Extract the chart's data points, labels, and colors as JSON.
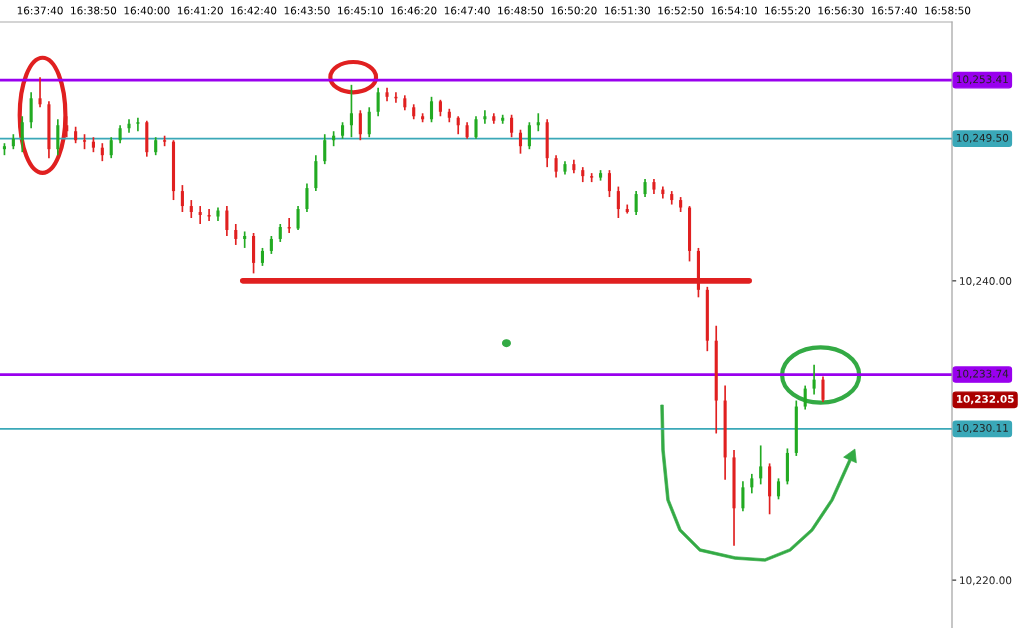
{
  "chart_data": {
    "type": "candlestick",
    "categories": [
      null,
      null,
      null,
      null,
      "16:37:40",
      null,
      null,
      null,
      null,
      null,
      "16:38:50",
      null,
      null,
      null,
      null,
      null,
      "16:40:00",
      null,
      null,
      null,
      null,
      null,
      "16:41:20",
      null,
      null,
      null,
      null,
      null,
      "16:42:40",
      null,
      null,
      null,
      null,
      null,
      "16:43:50",
      null,
      null,
      null,
      null,
      null,
      "16:45:10",
      null,
      null,
      null,
      null,
      null,
      "16:46:20",
      null,
      null,
      null,
      null,
      null,
      "16:47:40",
      null,
      null,
      null,
      null,
      null,
      "16:48:50",
      null,
      null,
      null,
      null,
      null,
      "16:50:20",
      null,
      null,
      null,
      null,
      null,
      "16:51:30",
      null,
      null,
      null,
      null,
      null,
      "16:52:50",
      null,
      null,
      null,
      null,
      null,
      "16:54:10",
      null,
      null,
      null,
      null,
      null,
      "16:55:20",
      null,
      null,
      null,
      null,
      null,
      "16:56:30",
      null,
      null,
      null,
      null,
      null,
      "16:57:40",
      null,
      null,
      null,
      null,
      null,
      "16:58:50"
    ],
    "ohlc": [
      [
        10248.8,
        10249.2,
        10248.4,
        10249.0
      ],
      [
        10249.0,
        10249.8,
        10248.8,
        10249.5
      ],
      [
        10249.4,
        10251.0,
        10248.6,
        10250.6
      ],
      [
        10250.6,
        10252.6,
        10250.2,
        10252.2
      ],
      [
        10252.2,
        10253.6,
        10251.6,
        10251.8
      ],
      [
        10251.8,
        10252.0,
        10248.2,
        10248.8
      ],
      [
        10248.8,
        10250.8,
        10248.4,
        10250.4
      ],
      [
        10250.4,
        10251.0,
        10249.6,
        10250.0
      ],
      [
        10250.0,
        10250.3,
        10249.2,
        10249.4
      ],
      [
        10249.4,
        10249.8,
        10248.8,
        10249.3
      ],
      [
        10249.3,
        10249.6,
        10248.6,
        10248.9
      ],
      [
        10248.9,
        10249.2,
        10248.0,
        10248.4
      ],
      [
        10248.4,
        10249.6,
        10248.2,
        10249.4
      ],
      [
        10249.4,
        10250.4,
        10249.2,
        10250.2
      ],
      [
        10250.2,
        10250.8,
        10249.9,
        10250.5
      ],
      [
        10250.5,
        10250.9,
        10250.0,
        10250.6
      ],
      [
        10250.6,
        10250.7,
        10248.3,
        10248.6
      ],
      [
        10248.6,
        10249.6,
        10248.4,
        10249.4
      ],
      [
        10249.4,
        10249.7,
        10249.0,
        10249.3
      ],
      [
        10249.3,
        10249.4,
        10245.4,
        10246.0
      ],
      [
        10246.0,
        10246.4,
        10244.6,
        10245.0
      ],
      [
        10245.0,
        10245.4,
        10244.2,
        10244.6
      ],
      [
        10244.6,
        10245.0,
        10243.8,
        10244.4
      ],
      [
        10244.4,
        10244.8,
        10244.0,
        10244.3
      ],
      [
        10244.3,
        10244.9,
        10244.0,
        10244.7
      ],
      [
        10244.7,
        10245.0,
        10243.0,
        10243.4
      ],
      [
        10243.4,
        10243.8,
        10242.4,
        10242.8
      ],
      [
        10242.8,
        10243.3,
        10242.2,
        10243.0
      ],
      [
        10243.0,
        10243.2,
        10240.5,
        10241.2
      ],
      [
        10241.2,
        10242.2,
        10241.0,
        10242.0
      ],
      [
        10242.0,
        10243.0,
        10241.8,
        10242.8
      ],
      [
        10242.8,
        10243.8,
        10242.6,
        10243.6
      ],
      [
        10243.6,
        10244.2,
        10243.2,
        10243.5
      ],
      [
        10243.5,
        10245.0,
        10243.4,
        10244.8
      ],
      [
        10244.8,
        10246.5,
        10244.6,
        10246.2
      ],
      [
        10246.2,
        10248.4,
        10246.0,
        10248.0
      ],
      [
        10248.0,
        10249.8,
        10247.8,
        10249.4
      ],
      [
        10249.4,
        10250.0,
        10249.0,
        10249.7
      ],
      [
        10249.7,
        10250.6,
        10249.5,
        10250.4
      ],
      [
        10250.4,
        10253.1,
        10249.6,
        10251.2
      ],
      [
        10251.2,
        10251.4,
        10249.4,
        10249.8
      ],
      [
        10249.8,
        10251.6,
        10249.6,
        10251.3
      ],
      [
        10251.3,
        10252.9,
        10251.0,
        10252.6
      ],
      [
        10252.6,
        10252.9,
        10252.0,
        10252.3
      ],
      [
        10252.3,
        10252.6,
        10251.9,
        10252.2
      ],
      [
        10252.2,
        10252.4,
        10251.4,
        10251.6
      ],
      [
        10251.6,
        10251.8,
        10250.8,
        10251.0
      ],
      [
        10251.0,
        10251.2,
        10250.6,
        10250.8
      ],
      [
        10250.8,
        10252.3,
        10250.6,
        10252.0
      ],
      [
        10252.0,
        10252.1,
        10251.0,
        10251.3
      ],
      [
        10251.3,
        10251.5,
        10250.6,
        10250.9
      ],
      [
        10250.9,
        10251.0,
        10249.8,
        10250.4
      ],
      [
        10250.4,
        10250.6,
        10249.5,
        10249.6
      ],
      [
        10249.6,
        10251.0,
        10249.5,
        10250.8
      ],
      [
        10250.8,
        10251.4,
        10250.5,
        10251.0
      ],
      [
        10251.0,
        10251.2,
        10250.5,
        10250.7
      ],
      [
        10250.7,
        10251.1,
        10250.5,
        10250.9
      ],
      [
        10250.9,
        10251.1,
        10249.6,
        10249.9
      ],
      [
        10249.9,
        10250.1,
        10248.5,
        10249.0
      ],
      [
        10249.0,
        10250.6,
        10248.8,
        10250.4
      ],
      [
        10250.4,
        10251.2,
        10250.0,
        10250.6
      ],
      [
        10250.6,
        10250.8,
        10247.6,
        10248.2
      ],
      [
        10248.2,
        10248.4,
        10246.9,
        10247.3
      ],
      [
        10247.3,
        10248.0,
        10247.1,
        10247.8
      ],
      [
        10247.8,
        10248.1,
        10247.2,
        10247.4
      ],
      [
        10247.4,
        10247.6,
        10246.6,
        10247.0
      ],
      [
        10247.0,
        10247.2,
        10246.6,
        10246.9
      ],
      [
        10246.9,
        10247.4,
        10246.7,
        10247.2
      ],
      [
        10247.2,
        10247.4,
        10245.6,
        10246.0
      ],
      [
        10246.0,
        10246.3,
        10244.2,
        10244.8
      ],
      [
        10244.8,
        10245.1,
        10244.5,
        10244.6
      ],
      [
        10244.6,
        10246.0,
        10244.4,
        10245.8
      ],
      [
        10245.8,
        10246.8,
        10245.6,
        10246.6
      ],
      [
        10246.6,
        10246.8,
        10245.8,
        10246.1
      ],
      [
        10246.1,
        10246.3,
        10245.5,
        10245.8
      ],
      [
        10245.8,
        10246.0,
        10245.1,
        10245.4
      ],
      [
        10245.4,
        10245.6,
        10244.6,
        10244.9
      ],
      [
        10244.9,
        10245.0,
        10241.3,
        10242.0
      ],
      [
        10242.0,
        10242.2,
        10238.9,
        10239.4
      ],
      [
        10239.4,
        10239.6,
        10235.3,
        10236.0
      ],
      [
        10236.0,
        10237.0,
        10229.8,
        10232.0
      ],
      [
        10232.0,
        10233.0,
        10226.7,
        10228.2
      ],
      [
        10228.2,
        10228.7,
        10222.3,
        10224.8
      ],
      [
        10224.8,
        10226.6,
        10224.6,
        10226.2
      ],
      [
        10226.2,
        10227.1,
        10225.8,
        10226.8
      ],
      [
        10226.8,
        10229.0,
        10226.4,
        10227.6
      ],
      [
        10227.6,
        10227.8,
        10224.4,
        10225.6
      ],
      [
        10225.6,
        10226.8,
        10225.4,
        10226.6
      ],
      [
        10226.6,
        10228.8,
        10226.4,
        10228.5
      ],
      [
        10228.5,
        10232.0,
        10228.3,
        10231.6
      ],
      [
        10231.6,
        10233.0,
        10231.4,
        10232.8
      ],
      [
        10232.8,
        10234.4,
        10232.4,
        10233.4
      ],
      [
        10233.4,
        10233.6,
        10231.9,
        10232.05
      ],
      null,
      null,
      null,
      null,
      null,
      null,
      null,
      null,
      null,
      null,
      null,
      null,
      null,
      null
    ],
    "colors": [
      "#22aa22",
      "#22aa22",
      "#22aa22",
      "#22aa22",
      "#e02020",
      "#e02020",
      "#22aa22",
      "#e02020",
      "#e02020",
      "#e02020",
      "#e02020",
      "#e02020",
      "#22aa22",
      "#22aa22",
      "#22aa22",
      "#22aa22",
      "#e02020",
      "#22aa22",
      "#e02020",
      "#e02020",
      "#e02020",
      "#e02020",
      "#e02020",
      "#e02020",
      "#22aa22",
      "#e02020",
      "#e02020",
      "#22aa22",
      "#e02020",
      "#22aa22",
      "#22aa22",
      "#22aa22",
      "#e02020",
      "#22aa22",
      "#22aa22",
      "#22aa22",
      "#22aa22",
      "#22aa22",
      "#22aa22",
      "#22aa22",
      "#e02020",
      "#22aa22",
      "#22aa22",
      "#e02020",
      "#e02020",
      "#e02020",
      "#e02020",
      "#e02020",
      "#22aa22",
      "#e02020",
      "#e02020",
      "#e02020",
      "#e02020",
      "#22aa22",
      "#22aa22",
      "#e02020",
      "#22aa22",
      "#e02020",
      "#e02020",
      "#22aa22",
      "#22aa22",
      "#e02020",
      "#e02020",
      "#22aa22",
      "#e02020",
      "#e02020",
      "#e02020",
      "#22aa22",
      "#e02020",
      "#e02020",
      "#e02020",
      "#22aa22",
      "#22aa22",
      "#e02020",
      "#e02020",
      "#e02020",
      "#e02020",
      "#e02020",
      "#e02020",
      "#e02020",
      "#e02020",
      "#e02020",
      "#e02020",
      "#22aa22",
      "#22aa22",
      "#22aa22",
      "#e02020",
      "#22aa22",
      "#22aa22",
      "#22aa22",
      "#22aa22",
      "#22aa22",
      "#e02020",
      null,
      null,
      null,
      null,
      null,
      null,
      null,
      null,
      null,
      null,
      null,
      null,
      null,
      null
    ],
    "ylim": [
      10216.8,
      10257.3
    ],
    "yticks": [
      {
        "value": 10220,
        "label": "10,220.00"
      },
      {
        "value": 10240,
        "label": "10,240.00"
      }
    ],
    "ref_lines": [
      {
        "axis": "y",
        "value": 10253.41,
        "label": "10,253.41",
        "color": "#9900ee"
      },
      {
        "axis": "y",
        "value": 10249.5,
        "label": "10,249.50",
        "color": "#3aa8b8"
      },
      {
        "axis": "y",
        "value": 10233.74,
        "label": "10,233.74",
        "color": "#9900ee"
      },
      {
        "axis": "y",
        "value": 10230.11,
        "label": "10,230.11",
        "color": "#3aa8b8"
      },
      {
        "axis": "y",
        "value": 10240,
        "color": "#e02020"
      }
    ],
    "annotations": [
      "10,232.05"
    ],
    "grid": false,
    "legend": false
  }
}
